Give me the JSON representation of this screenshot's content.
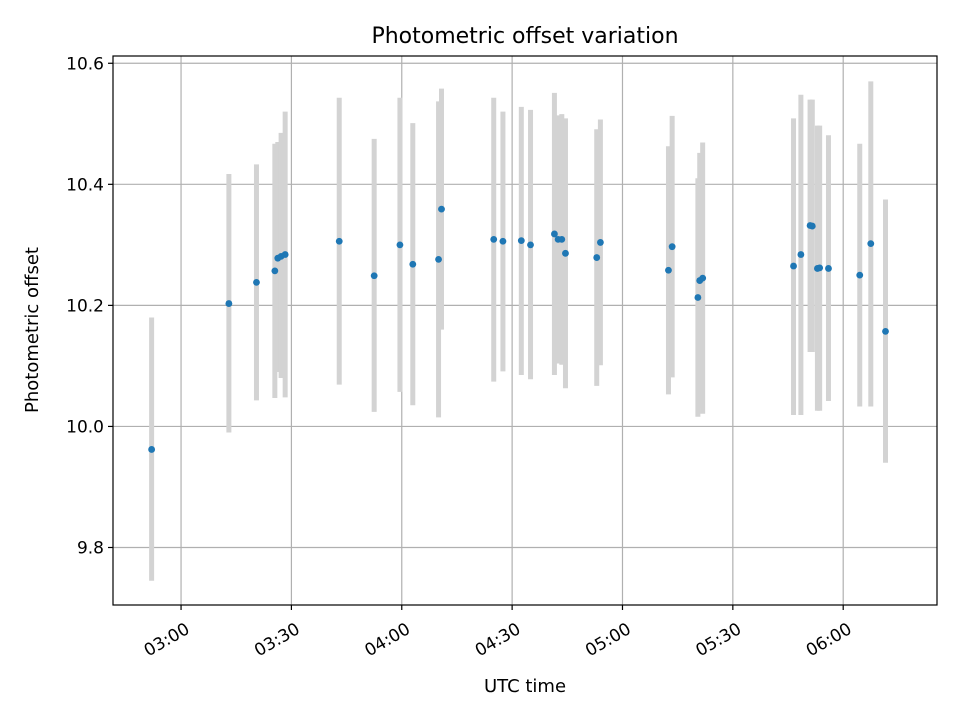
{
  "chart_data": {
    "type": "scatter",
    "title": "Photometric offset variation",
    "xlabel": "UTC time",
    "ylabel": "Photometric offset",
    "grid": true,
    "x_ticks": [
      "03:00",
      "03:30",
      "04:00",
      "04:30",
      "05:00",
      "05:30",
      "06:00"
    ],
    "x_tick_minutes": [
      180,
      210,
      240,
      270,
      300,
      330,
      360
    ],
    "xlim": [
      161.5,
      385.5
    ],
    "y_ticks": [
      "9.8",
      "10.0",
      "10.2",
      "10.4",
      "10.6"
    ],
    "y_tick_values": [
      9.8,
      10.0,
      10.2,
      10.4,
      10.6
    ],
    "ylim": [
      9.705,
      10.612
    ],
    "marker_color": "#1f77b4",
    "errorbar_color": "#d3d3d3",
    "series": [
      {
        "points": [
          {
            "t": 172.0,
            "y": 9.962,
            "lo": 9.745,
            "hi": 10.18
          },
          {
            "t": 193.0,
            "y": 10.203,
            "lo": 9.99,
            "hi": 10.417
          },
          {
            "t": 200.5,
            "y": 10.238,
            "lo": 10.043,
            "hi": 10.433
          },
          {
            "t": 205.5,
            "y": 10.257,
            "lo": 10.047,
            "hi": 10.467
          },
          {
            "t": 206.3,
            "y": 10.278,
            "lo": 10.09,
            "hi": 10.47
          },
          {
            "t": 207.2,
            "y": 10.281,
            "lo": 10.08,
            "hi": 10.485
          },
          {
            "t": 208.3,
            "y": 10.284,
            "lo": 10.048,
            "hi": 10.52
          },
          {
            "t": 223.0,
            "y": 10.306,
            "lo": 10.069,
            "hi": 10.543
          },
          {
            "t": 232.5,
            "y": 10.249,
            "lo": 10.024,
            "hi": 10.475
          },
          {
            "t": 239.5,
            "y": 10.3,
            "lo": 10.057,
            "hi": 10.543
          },
          {
            "t": 243.0,
            "y": 10.268,
            "lo": 10.035,
            "hi": 10.501
          },
          {
            "t": 250.0,
            "y": 10.276,
            "lo": 10.015,
            "hi": 10.537
          },
          {
            "t": 250.8,
            "y": 10.359,
            "lo": 10.16,
            "hi": 10.558
          },
          {
            "t": 265.0,
            "y": 10.309,
            "lo": 10.074,
            "hi": 10.543
          },
          {
            "t": 267.5,
            "y": 10.306,
            "lo": 10.091,
            "hi": 10.52
          },
          {
            "t": 272.5,
            "y": 10.307,
            "lo": 10.085,
            "hi": 10.528
          },
          {
            "t": 275.0,
            "y": 10.3,
            "lo": 10.078,
            "hi": 10.523
          },
          {
            "t": 281.5,
            "y": 10.318,
            "lo": 10.085,
            "hi": 10.551
          },
          {
            "t": 282.5,
            "y": 10.309,
            "lo": 10.104,
            "hi": 10.514
          },
          {
            "t": 283.5,
            "y": 10.309,
            "lo": 10.102,
            "hi": 10.516
          },
          {
            "t": 284.5,
            "y": 10.286,
            "lo": 10.063,
            "hi": 10.509
          },
          {
            "t": 293.0,
            "y": 10.279,
            "lo": 10.067,
            "hi": 10.491
          },
          {
            "t": 294.0,
            "y": 10.304,
            "lo": 10.101,
            "hi": 10.507
          },
          {
            "t": 312.5,
            "y": 10.258,
            "lo": 10.053,
            "hi": 10.463
          },
          {
            "t": 313.5,
            "y": 10.297,
            "lo": 10.081,
            "hi": 10.513
          },
          {
            "t": 320.5,
            "y": 10.213,
            "lo": 10.016,
            "hi": 10.41
          },
          {
            "t": 321.0,
            "y": 10.241,
            "lo": 10.03,
            "hi": 10.452
          },
          {
            "t": 321.8,
            "y": 10.245,
            "lo": 10.021,
            "hi": 10.469
          },
          {
            "t": 346.5,
            "y": 10.265,
            "lo": 10.019,
            "hi": 10.509
          },
          {
            "t": 348.5,
            "y": 10.284,
            "lo": 10.019,
            "hi": 10.548
          },
          {
            "t": 351.0,
            "y": 10.332,
            "lo": 10.123,
            "hi": 10.54
          },
          {
            "t": 351.6,
            "y": 10.331,
            "lo": 10.123,
            "hi": 10.54
          },
          {
            "t": 353.0,
            "y": 10.261,
            "lo": 10.026,
            "hi": 10.497
          },
          {
            "t": 353.6,
            "y": 10.262,
            "lo": 10.026,
            "hi": 10.497
          },
          {
            "t": 356.0,
            "y": 10.261,
            "lo": 10.042,
            "hi": 10.481
          },
          {
            "t": 364.5,
            "y": 10.25,
            "lo": 10.033,
            "hi": 10.467
          },
          {
            "t": 367.5,
            "y": 10.302,
            "lo": 10.033,
            "hi": 10.57
          },
          {
            "t": 371.5,
            "y": 10.157,
            "lo": 9.94,
            "hi": 10.375
          }
        ]
      }
    ]
  }
}
